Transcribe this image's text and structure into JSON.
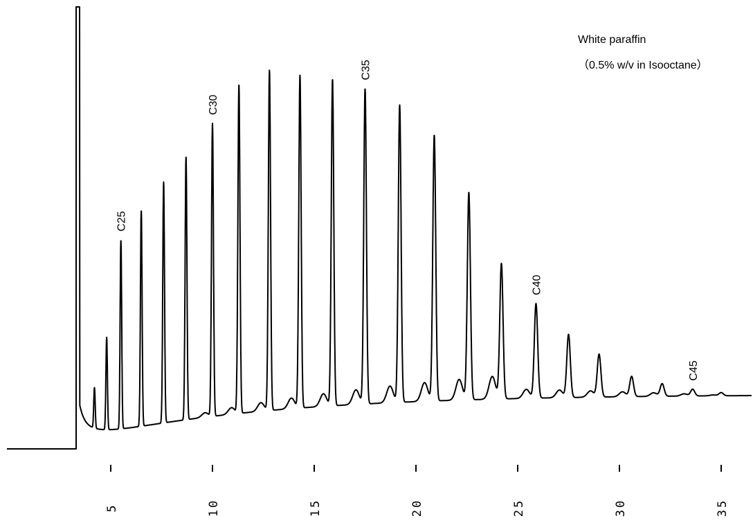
{
  "annotation": {
    "line1": "White paraffin",
    "line2": "（0.5%  w/v in Isooctane）"
  },
  "chart_data": {
    "type": "line",
    "title": "",
    "xlabel": "",
    "ylabel": "",
    "xlim": [
      1.2,
      36.5
    ],
    "ylim": [
      0,
      100
    ],
    "grid": false,
    "x_ticks": [
      5,
      10,
      15,
      20,
      25,
      30,
      35
    ],
    "x_tick_labels": [
      "5",
      "10",
      "15",
      "20",
      "25",
      "30",
      "35"
    ],
    "solvent_front": {
      "x": 3.3
    },
    "series": [
      {
        "peaks": [
          {
            "x": 4.2,
            "height": 9.0
          },
          {
            "x": 4.8,
            "height": 20.5
          },
          {
            "x": 5.5,
            "height": 42.0
          },
          {
            "x": 6.5,
            "height": 48.0
          },
          {
            "x": 7.6,
            "height": 53.5
          },
          {
            "x": 8.7,
            "height": 58.5
          },
          {
            "x": 10.0,
            "height": 65.0
          },
          {
            "x": 11.3,
            "height": 73.0
          },
          {
            "x": 12.8,
            "height": 75.5
          },
          {
            "x": 14.3,
            "height": 74.0
          },
          {
            "x": 15.9,
            "height": 72.5
          },
          {
            "x": 17.5,
            "height": 70.0
          },
          {
            "x": 19.2,
            "height": 66.0
          },
          {
            "x": 20.9,
            "height": 59.0
          },
          {
            "x": 22.6,
            "height": 46.0
          },
          {
            "x": 24.2,
            "height": 30.0
          },
          {
            "x": 25.9,
            "height": 21.0
          },
          {
            "x": 27.5,
            "height": 14.0
          },
          {
            "x": 29.0,
            "height": 9.5
          },
          {
            "x": 30.6,
            "height": 4.5
          },
          {
            "x": 32.1,
            "height": 2.8
          },
          {
            "x": 33.6,
            "height": 1.5
          },
          {
            "x": 35.0,
            "height": 0.7
          }
        ]
      }
    ],
    "peak_labels": [
      {
        "text": "C25",
        "x": 5.5
      },
      {
        "text": "C30",
        "x": 10.0
      },
      {
        "text": "C35",
        "x": 17.5
      },
      {
        "text": "C40",
        "x": 25.9
      },
      {
        "text": "C45",
        "x": 33.6
      }
    ]
  }
}
